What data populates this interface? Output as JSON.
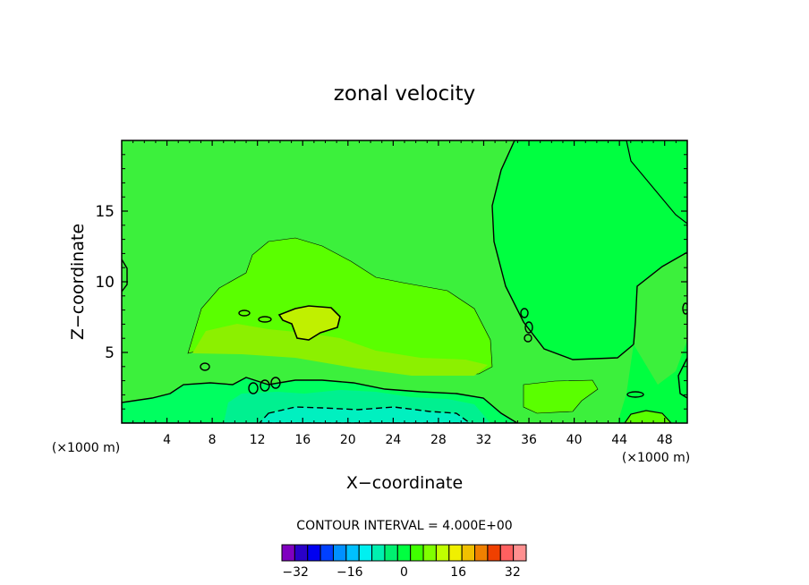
{
  "chart_data": {
    "type": "contour",
    "title": "zonal velocity",
    "xlabel": "X−coordinate",
    "ylabel": "Z−coordinate",
    "x_units_left": "(×1000 m)",
    "x_units_right": "(×1000 m)",
    "xlim": [
      0,
      50
    ],
    "ylim": [
      0,
      20
    ],
    "x_ticks": [
      4,
      8,
      12,
      16,
      20,
      24,
      28,
      32,
      36,
      40,
      44,
      48
    ],
    "y_ticks": [
      5,
      10,
      15
    ],
    "contour_interval_label": "CONTOUR INTERVAL = 4.000E+00",
    "contour_interval": 4.0,
    "colorbar": {
      "levels": [
        -36,
        -32,
        -28,
        -24,
        -20,
        -16,
        -12,
        -8,
        -4,
        0,
        4,
        8,
        12,
        16,
        20,
        24,
        28,
        32,
        36
      ],
      "tick_labels": [
        "−32",
        "−16",
        "0",
        "16",
        "32"
      ],
      "tick_values": [
        -32,
        -16,
        0,
        16,
        32
      ],
      "colors": [
        "#7f00bf",
        "#2a00c8",
        "#0000f0",
        "#0040ff",
        "#0090ff",
        "#00c0ff",
        "#00f0f0",
        "#00f0b0",
        "#00f070",
        "#00ff40",
        "#40ff00",
        "#80ff00",
        "#c0ff00",
        "#f0f000",
        "#f0c000",
        "#f08000",
        "#f04000",
        "#ff6060",
        "#ff9090"
      ]
    },
    "fields": {
      "background": "#3cf03c",
      "band_0_4": "#00ff40",
      "band_4_8": "#5aff00",
      "band_8_12": "#8cf000",
      "band_12_16": "#c0f000",
      "band_neg4_0": "#00ff60",
      "band_neg8_neg4": "#00f090",
      "band_neg12_neg8": "#00f0c0"
    }
  }
}
